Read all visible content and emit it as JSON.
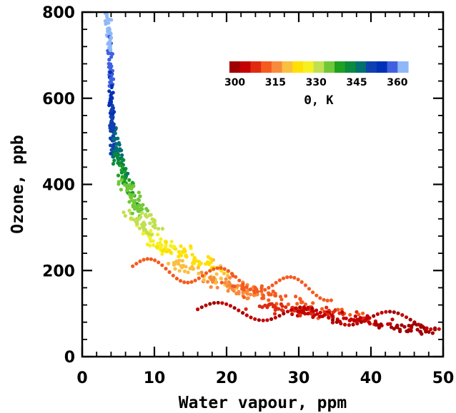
{
  "chart_data": {
    "type": "scatter",
    "title": "",
    "xlabel": "Water vapour, ppm",
    "ylabel": "Ozone, ppb",
    "xlim": [
      0,
      50
    ],
    "ylim": [
      0,
      800
    ],
    "x_ticks": [
      "0",
      "10",
      "20",
      "30",
      "40",
      "50"
    ],
    "y_ticks": [
      "0",
      "200",
      "400",
      "600",
      "800"
    ],
    "grid": false,
    "colorbar": {
      "title": "Θ, K",
      "min": 298,
      "max": 364,
      "tick_labels": [
        "300",
        "315",
        "330",
        "345",
        "360"
      ],
      "placement": "top-right",
      "colors": [
        "#a00000",
        "#c40000",
        "#e02a10",
        "#f55a1e",
        "#f88a3c",
        "#fbbf40",
        "#ffe000",
        "#f5f020",
        "#c0e050",
        "#70c838",
        "#1ea020",
        "#0a8a3c",
        "#007070",
        "#1040b0",
        "#0030b8",
        "#4060e0",
        "#90b8f8"
      ]
    },
    "series": [
      {
        "segments": [
          {
            "x0": 3.6,
            "x1": 4.4,
            "y0": 800,
            "y1": 460,
            "n": 160,
            "theta0": 364,
            "theta1": 348,
            "jx": 0.55,
            "jy": 12
          },
          {
            "x0": 4.0,
            "x1": 6.0,
            "y0": 560,
            "y1": 420,
            "n": 50,
            "theta0": 350,
            "theta1": 343,
            "jx": 0.6,
            "jy": 20
          },
          {
            "x0": 4.5,
            "x1": 8.0,
            "y0": 470,
            "y1": 330,
            "n": 60,
            "theta0": 343,
            "theta1": 333,
            "jx": 1.0,
            "jy": 22
          },
          {
            "x0": 4.5,
            "x1": 10.5,
            "y0": 420,
            "y1": 300,
            "n": 45,
            "theta0": 336,
            "theta1": 331,
            "jx": 1.2,
            "jy": 18
          },
          {
            "x0": 6.0,
            "x1": 12.0,
            "y0": 340,
            "y1": 240,
            "n": 60,
            "theta0": 332,
            "theta1": 326,
            "jx": 1.5,
            "jy": 18
          },
          {
            "x0": 10.0,
            "x1": 20.0,
            "y0": 270,
            "y1": 200,
            "n": 60,
            "theta0": 327,
            "theta1": 321,
            "jx": 2.5,
            "jy": 18
          },
          {
            "x0": 12.0,
            "x1": 24.0,
            "y0": 225,
            "y1": 140,
            "n": 70,
            "theta0": 321,
            "theta1": 315,
            "jx": 3.0,
            "jy": 18
          },
          {
            "x0": 18.0,
            "x1": 40.0,
            "y0": 180,
            "y1": 80,
            "n": 90,
            "theta0": 315,
            "theta1": 308,
            "jx": 4.0,
            "jy": 18
          },
          {
            "x0": 25.0,
            "x1": 50.0,
            "y0": 120,
            "y1": 55,
            "n": 130,
            "theta0": 308,
            "theta1": 299,
            "jx": 3.5,
            "jy": 14
          }
        ],
        "loops": [
          {
            "x0": 7.0,
            "x1": 35.0,
            "y0": 210,
            "y1": 150,
            "n": 55,
            "theta": 312,
            "amp": 22
          },
          {
            "x0": 16.0,
            "x1": 50.0,
            "y0": 110,
            "y1": 80,
            "n": 60,
            "theta": 302,
            "amp": 18
          }
        ]
      }
    ]
  }
}
